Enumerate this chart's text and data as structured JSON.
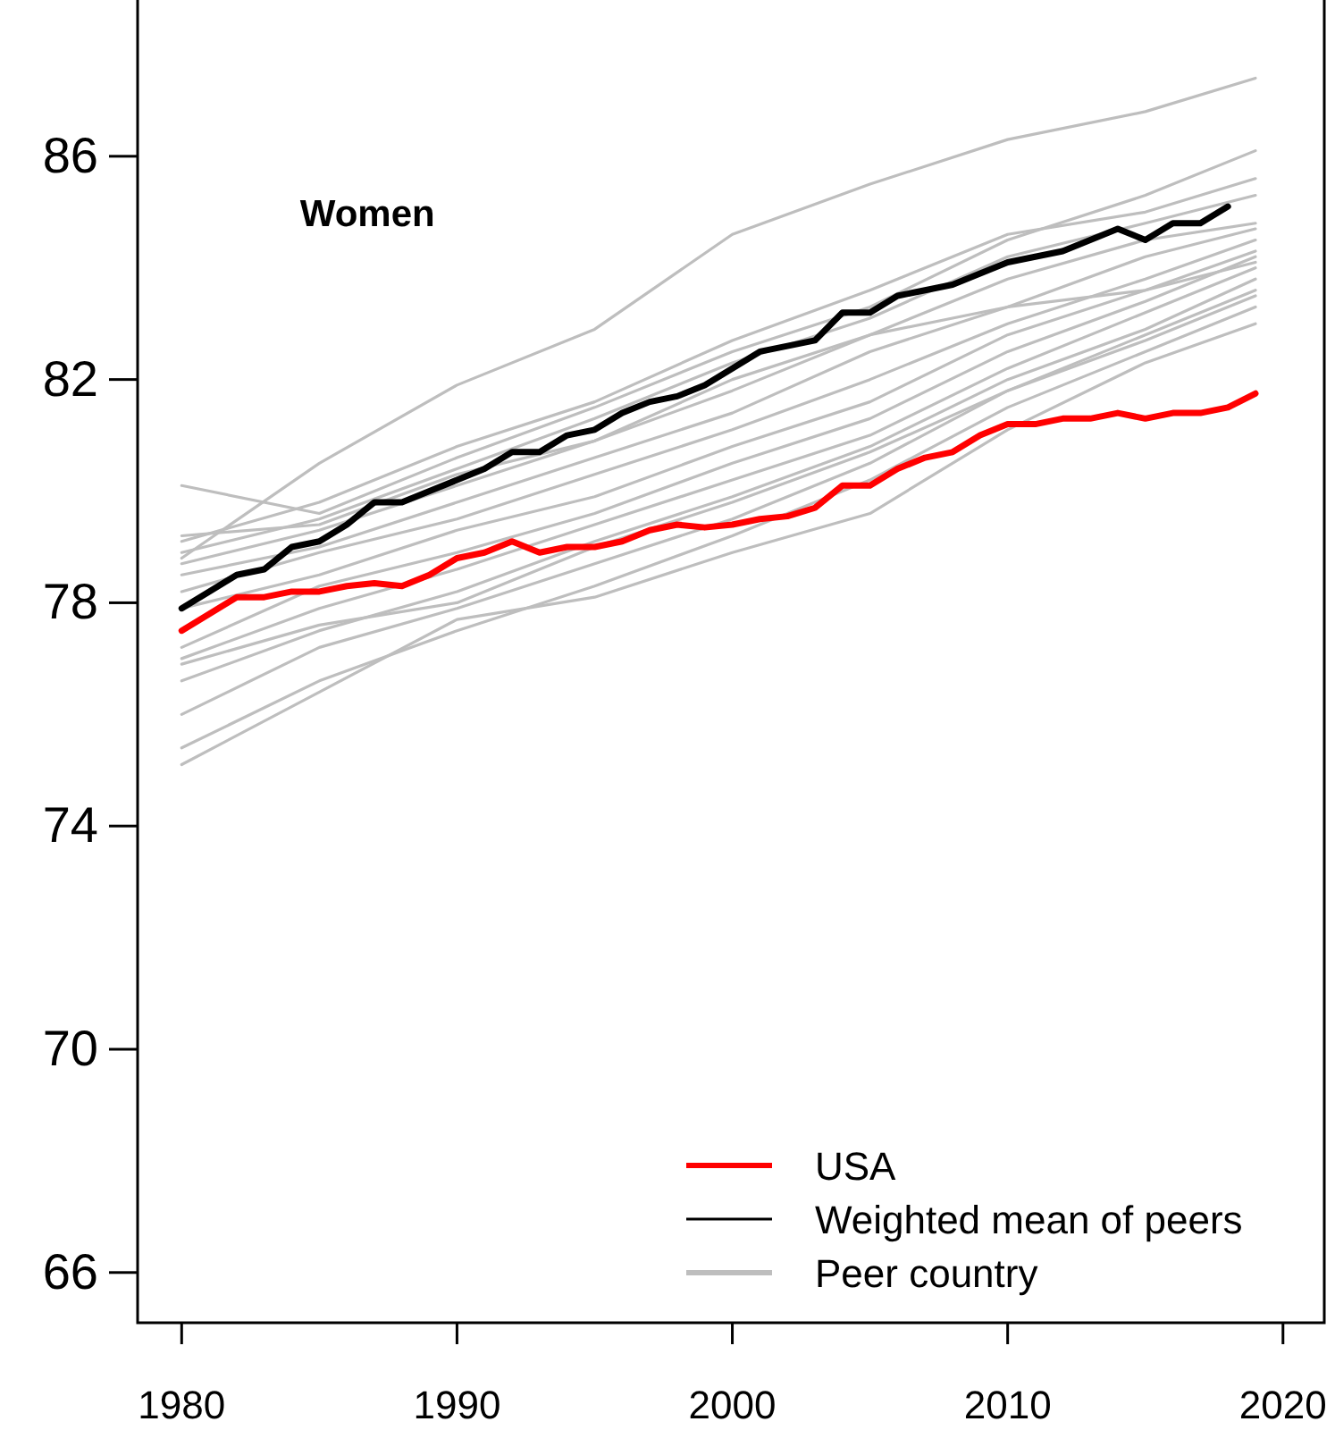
{
  "chart_data": {
    "type": "line",
    "title": "Women",
    "xlim": [
      1978.4,
      2021.5
    ],
    "xticks": [
      1980,
      1990,
      2000,
      2010,
      2020
    ],
    "ylim": [
      65.1,
      88.8
    ],
    "yticks": [
      66,
      70,
      74,
      78,
      82,
      86
    ],
    "grid": false,
    "legend": "bottom right",
    "marker": "none",
    "line_style": "solid",
    "series": [
      {
        "name": "Peer country",
        "color": "#bebebe",
        "x": [
          1980,
          1985,
          1990,
          1995,
          2000,
          2005,
          2010,
          2015,
          2019
        ],
        "values": [
          78.8,
          80.5,
          81.9,
          82.9,
          84.6,
          85.5,
          86.3,
          86.8,
          87.4
        ]
      },
      {
        "color": "#bebebe",
        "x": [
          1980,
          1985,
          1990,
          1995,
          2000,
          2005,
          2010,
          2015,
          2019
        ],
        "values": [
          80.1,
          79.6,
          80.6,
          81.5,
          82.5,
          83.3,
          84.5,
          85.3,
          86.1
        ]
      },
      {
        "color": "#bebebe",
        "x": [
          1980,
          1985,
          1990,
          1995,
          2000,
          2005,
          2010,
          2015,
          2019
        ],
        "values": [
          79.1,
          79.8,
          80.8,
          81.6,
          82.7,
          83.6,
          84.6,
          85.0,
          85.6
        ]
      },
      {
        "color": "#bebebe",
        "x": [
          1980,
          1985,
          1990,
          1995,
          2000,
          2005,
          2010,
          2015,
          2019
        ],
        "values": [
          78.9,
          79.5,
          80.4,
          81.3,
          82.3,
          83.1,
          84.2,
          84.8,
          85.3
        ]
      },
      {
        "color": "#bebebe",
        "x": [
          1980,
          1985,
          1990,
          1995,
          2000,
          2005,
          2010,
          2015,
          2019
        ],
        "values": [
          78.7,
          79.3,
          80.1,
          80.9,
          81.8,
          82.8,
          83.8,
          84.5,
          84.8
        ]
      },
      {
        "color": "#bebebe",
        "x": [
          1980,
          1985,
          1990,
          1995,
          2000,
          2005,
          2010,
          2015,
          2019
        ],
        "values": [
          78.5,
          79.0,
          79.8,
          80.6,
          81.4,
          82.5,
          83.3,
          84.2,
          84.7
        ]
      },
      {
        "color": "#bebebe",
        "x": [
          1980,
          1985,
          1990,
          1995,
          2000,
          2005,
          2010,
          2015,
          2019
        ],
        "values": [
          78.2,
          78.9,
          79.5,
          80.3,
          81.1,
          82.0,
          83.0,
          83.8,
          84.5
        ]
      },
      {
        "color": "#bebebe",
        "x": [
          1980,
          1985,
          1990,
          1995,
          2000,
          2005,
          2010,
          2015,
          2019
        ],
        "values": [
          77.9,
          78.5,
          79.3,
          79.9,
          80.8,
          81.6,
          82.8,
          83.6,
          84.3
        ]
      },
      {
        "color": "#bebebe",
        "x": [
          1980,
          1985,
          1990,
          1995,
          2000,
          2005,
          2010,
          2015,
          2019
        ],
        "values": [
          77.2,
          78.3,
          78.9,
          79.6,
          80.5,
          81.3,
          82.5,
          83.4,
          84.2
        ]
      },
      {
        "color": "#bebebe",
        "x": [
          1980,
          1985,
          1990,
          1995,
          2000,
          2005,
          2010,
          2015,
          2019
        ],
        "values": [
          77.0,
          77.9,
          78.6,
          79.4,
          80.2,
          81.0,
          82.2,
          83.2,
          84.0
        ]
      },
      {
        "color": "#bebebe",
        "x": [
          1980,
          1985,
          1990,
          1995,
          2000,
          2005,
          2010,
          2015,
          2019
        ],
        "values": [
          76.6,
          77.5,
          78.2,
          79.1,
          79.9,
          80.8,
          82.0,
          82.9,
          83.8
        ]
      },
      {
        "color": "#bebebe",
        "x": [
          1980,
          1985,
          1990,
          1995,
          2000,
          2005,
          2010,
          2015,
          2019
        ],
        "values": [
          76.0,
          77.2,
          77.9,
          78.7,
          79.5,
          80.5,
          81.8,
          82.7,
          83.5
        ]
      },
      {
        "color": "#bebebe",
        "x": [
          1980,
          1985,
          1990,
          1995,
          2000,
          2005,
          2010,
          2015,
          2019
        ],
        "values": [
          75.4,
          76.6,
          77.5,
          78.3,
          79.2,
          80.2,
          81.5,
          82.5,
          83.3
        ]
      },
      {
        "color": "#bebebe",
        "x": [
          1980,
          1985,
          1990,
          1995,
          2000,
          2005,
          2010,
          2015,
          2019
        ],
        "values": [
          75.1,
          76.4,
          77.7,
          78.1,
          78.9,
          79.6,
          81.1,
          82.3,
          83.0
        ]
      },
      {
        "color": "#bebebe",
        "x": [
          1980,
          1985,
          1990,
          1995,
          2000,
          2005,
          2010,
          2015,
          2019
        ],
        "values": [
          76.9,
          77.6,
          78.0,
          79.0,
          79.8,
          80.7,
          81.8,
          82.8,
          83.6
        ]
      },
      {
        "color": "#bebebe",
        "x": [
          1980,
          1985,
          1990,
          1995,
          2000,
          2005,
          2010,
          2015,
          2019
        ],
        "values": [
          79.2,
          79.4,
          80.3,
          80.9,
          82.0,
          82.8,
          83.3,
          83.6,
          84.1
        ]
      },
      {
        "name": "Weighted mean of peers",
        "color": "#000000",
        "x": [
          1980,
          1981,
          1982,
          1983,
          1984,
          1985,
          1986,
          1987,
          1988,
          1989,
          1990,
          1991,
          1992,
          1993,
          1994,
          1995,
          1996,
          1997,
          1998,
          1999,
          2000,
          2001,
          2002,
          2003,
          2004,
          2005,
          2006,
          2007,
          2008,
          2009,
          2010,
          2011,
          2012,
          2013,
          2014,
          2015,
          2016,
          2017,
          2018
        ],
        "values": [
          77.9,
          78.2,
          78.5,
          78.6,
          79.0,
          79.1,
          79.4,
          79.8,
          79.8,
          80.0,
          80.2,
          80.4,
          80.7,
          80.7,
          81.0,
          81.1,
          81.4,
          81.6,
          81.7,
          81.9,
          82.2,
          82.5,
          82.6,
          82.7,
          83.2,
          83.2,
          83.5,
          83.6,
          83.7,
          83.9,
          84.1,
          84.2,
          84.3,
          84.5,
          84.7,
          84.5,
          84.8,
          84.8,
          85.1
        ]
      },
      {
        "name": "USA",
        "color": "#ff0000",
        "x": [
          1980,
          1981,
          1982,
          1983,
          1984,
          1985,
          1986,
          1987,
          1988,
          1989,
          1990,
          1991,
          1992,
          1993,
          1994,
          1995,
          1996,
          1997,
          1998,
          1999,
          2000,
          2001,
          2002,
          2003,
          2004,
          2005,
          2006,
          2007,
          2008,
          2009,
          2010,
          2011,
          2012,
          2013,
          2014,
          2015,
          2016,
          2017,
          2018,
          2019
        ],
        "values": [
          77.5,
          77.8,
          78.1,
          78.1,
          78.2,
          78.2,
          78.3,
          78.35,
          78.3,
          78.5,
          78.8,
          78.9,
          79.1,
          78.9,
          79.0,
          79.0,
          79.1,
          79.3,
          79.4,
          79.35,
          79.4,
          79.5,
          79.55,
          79.7,
          80.1,
          80.1,
          80.4,
          80.6,
          80.7,
          81.0,
          81.2,
          81.2,
          81.3,
          81.3,
          81.4,
          81.3,
          81.4,
          81.4,
          81.5,
          81.75
        ]
      }
    ]
  }
}
